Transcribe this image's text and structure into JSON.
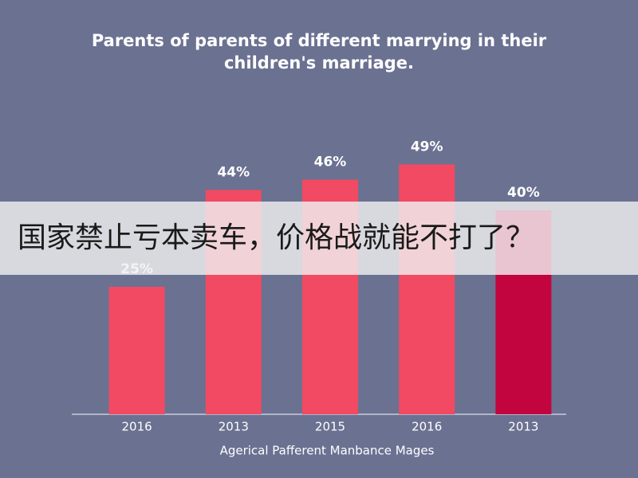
{
  "chart_data": {
    "type": "bar",
    "title": [
      "Parents of parents of different marrying in their",
      "children's marriage."
    ],
    "categories": [
      "2016",
      "2013",
      "2015",
      "2016",
      "2013"
    ],
    "values": [
      25,
      44,
      46,
      49,
      40
    ],
    "value_labels": [
      "25%",
      "44%",
      "46%",
      "49%",
      "40%"
    ],
    "colors": [
      "#f24a62",
      "#f24a62",
      "#f24a62",
      "#f24a62",
      "#c2053f"
    ],
    "x_label": "Agerical Pafferent Manbance Mages"
  },
  "banner": {
    "text": "国家禁止亏本卖车，价格战就能不打了？"
  }
}
